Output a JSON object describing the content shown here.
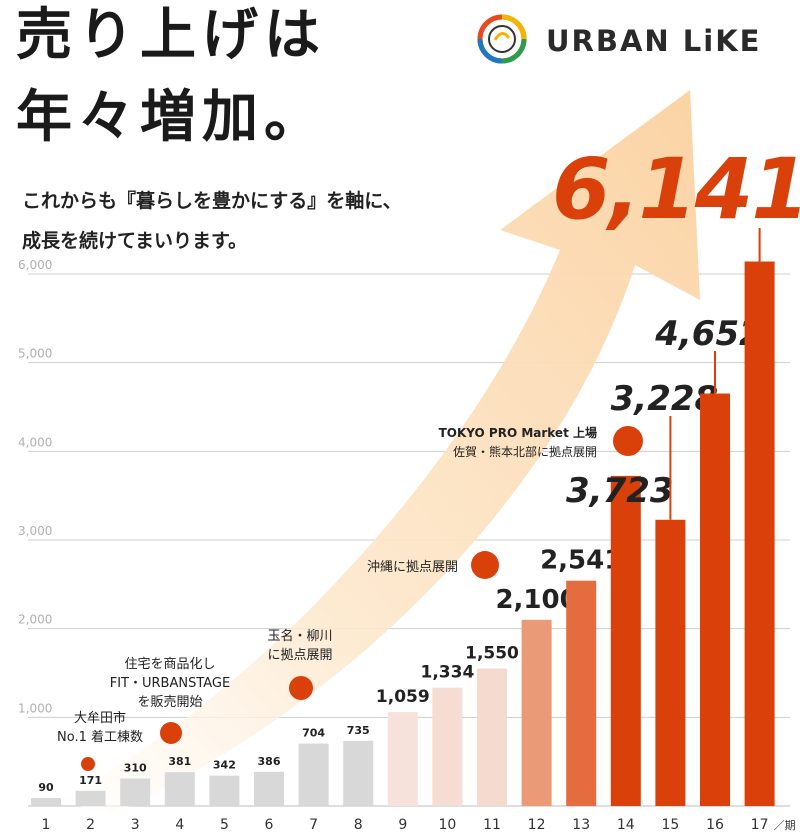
{
  "header": {
    "title_line1": "売り上げは",
    "title_line2": "年々増加。",
    "subtitle_line1": "これからも『暮らしを豊かにする』を軸に、",
    "subtitle_line2": "成長を続けてまいります。",
    "brand": "URBAN LiKE"
  },
  "chart_data": {
    "type": "bar",
    "categories": [
      "1",
      "2",
      "3",
      "4",
      "5",
      "6",
      "7",
      "8",
      "9",
      "10",
      "11",
      "12",
      "13",
      "14",
      "15",
      "16",
      "17"
    ],
    "x_unit": "／期",
    "values": [
      90,
      171,
      310,
      381,
      342,
      386,
      704,
      735,
      1059,
      1334,
      1550,
      2100,
      2541,
      3723,
      3228,
      4652,
      6141
    ],
    "value_labels": [
      "90",
      "171",
      "310",
      "381",
      "342",
      "386",
      "704",
      "735",
      "1,059",
      "1,334",
      "1,550",
      "2,100",
      "2,541",
      "3,723",
      "3,228",
      "4,652",
      "6,141"
    ],
    "ylim": [
      0,
      6000
    ],
    "yticks": [
      {
        "value": 1000,
        "label": "1,000"
      },
      {
        "value": 2000,
        "label": "2,000"
      },
      {
        "value": 3000,
        "label": "3,000"
      },
      {
        "value": 4000,
        "label": "4,000"
      },
      {
        "value": 5000,
        "label": "5,000"
      },
      {
        "value": 6000,
        "label": "6,000"
      }
    ],
    "grid": true,
    "bar_colors": [
      "#d8d8d8",
      "#d8d8d8",
      "#d8d8d8",
      "#d8d8d8",
      "#d8d8d8",
      "#d8d8d8",
      "#d8d8d8",
      "#d8d8d8",
      "#f6e2da",
      "#f5ddd3",
      "#f5dacf",
      "#ea9a76",
      "#e46c3e",
      "#d9400a",
      "#d9400a",
      "#d9400a",
      "#d9400a"
    ],
    "accent_color": "#d9400a",
    "arrow_color": "#fbd9ad",
    "total_label": "6,141",
    "annotations": [
      {
        "at": "2",
        "lines": [
          "大牟田市",
          "No.1 着工棟数"
        ]
      },
      {
        "at": "4",
        "lines": [
          "住宅を商品化し",
          "FIT・URBANSTAGE",
          "を販売開始"
        ]
      },
      {
        "at": "7",
        "lines": [
          "玉名・柳川",
          "に拠点展開"
        ]
      },
      {
        "at": "11",
        "lines": [
          "沖縄に拠点展開"
        ]
      },
      {
        "at": "14",
        "lines": [
          "TOKYO PRO Market 上場",
          "佐賀・熊本北部に拠点展開"
        ]
      }
    ]
  }
}
